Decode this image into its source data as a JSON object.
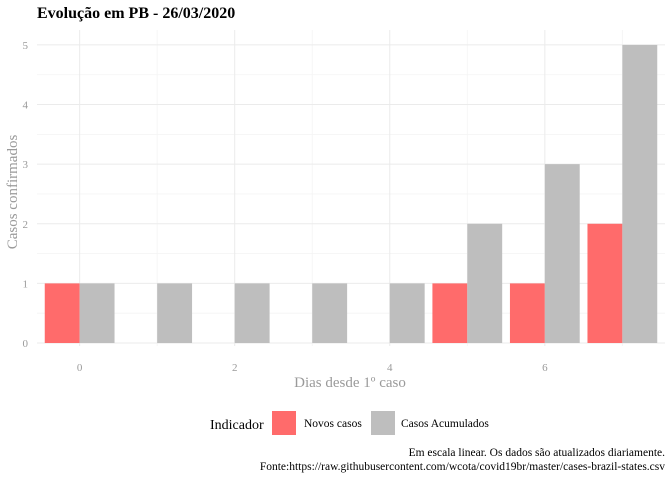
{
  "chart_data": {
    "type": "bar",
    "title": "Evolução em PB  -  26/03/2020",
    "xlabel": "Dias desde 1º caso",
    "ylabel": "Casos confirmados",
    "x": [
      0,
      1,
      2,
      3,
      4,
      5,
      6,
      7
    ],
    "xticks": [
      0,
      2,
      4,
      6
    ],
    "xlim": [
      -0.55,
      7.55
    ],
    "yticks": [
      0,
      1,
      2,
      3,
      4,
      5
    ],
    "ylim": [
      -0.05,
      5.25
    ],
    "grid": true,
    "legend": {
      "title": "Indicador",
      "placement": "bottom"
    },
    "series": [
      {
        "name": "Novos casos",
        "color": "#ff6b6b",
        "values": [
          1,
          0,
          0,
          0,
          0,
          1,
          1,
          2
        ]
      },
      {
        "name": "Casos Acumulados",
        "color": "#bebebe",
        "values": [
          1,
          1,
          1,
          1,
          1,
          2,
          3,
          5
        ]
      }
    ],
    "caption": [
      "Em escala linear. Os dados são atualizados diariamente.",
      "Fonte:https://raw.githubusercontent.com/wcota/covid19br/master/cases-brazil-states.csv"
    ]
  }
}
